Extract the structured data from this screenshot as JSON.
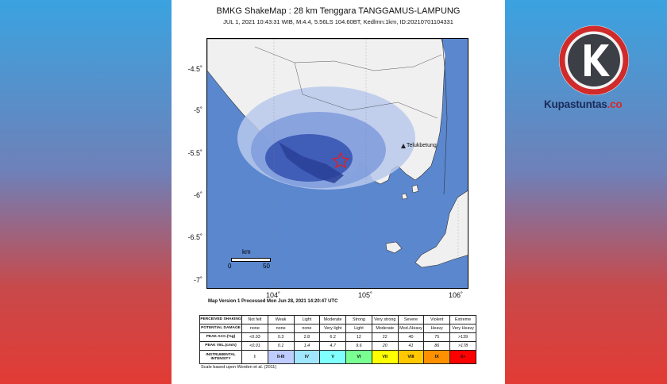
{
  "title": "BMKG ShakeMap : 28 km Tenggara TANGGAMUS-LAMPUNG",
  "subtitle": "JUL 1, 2021 10:43:31 WIB, M:4.4, 5.56LS 104.60BT, Kedlmn:1km, ID:20210701104331",
  "map": {
    "lat_ticks": [
      "-4.5˚",
      "-5˚",
      "-5.5˚",
      "-6˚",
      "-6.5˚",
      "-7˚"
    ],
    "lon_ticks": [
      "104˚",
      "105˚",
      "106˚"
    ],
    "place_label": "Telukbetung",
    "scale_bar": {
      "unit": "km",
      "start": "0",
      "end": "50"
    },
    "epicenter": {
      "lat": -5.56,
      "lon": 104.6
    }
  },
  "processed_note": "Map Version 1 Processed Mon Jun 28, 2021 14:20:47 UTC",
  "legend": {
    "rows": [
      {
        "label": "PERCEIVED SHAKING",
        "cells": [
          "Not felt",
          "Weak",
          "Light",
          "Moderate",
          "Strong",
          "Very strong",
          "Severe",
          "Violent",
          "Extreme"
        ]
      },
      {
        "label": "POTENTIAL DAMAGE",
        "cells": [
          "none",
          "none",
          "none",
          "Very light",
          "Light",
          "Moderate",
          "Mod./Heavy",
          "Heavy",
          "Very Heavy"
        ]
      },
      {
        "label": "PEAK ACC.(%g)",
        "cells": [
          "<0.03",
          "0.3",
          "2.8",
          "6.2",
          "12",
          "22",
          "40",
          "75",
          ">139"
        ]
      },
      {
        "label": "PEAK VEL.(cm/s)",
        "cells": [
          "<0.01",
          "0.1",
          "1.4",
          "4.7",
          "9.6",
          "20",
          "41",
          "86",
          ">178"
        ]
      },
      {
        "label": "INSTRUMENTAL INTENSITY",
        "cells": [
          "I",
          "II-III",
          "IV",
          "V",
          "VI",
          "VII",
          "VIII",
          "IX",
          "X+"
        ]
      }
    ],
    "intensity_colors": [
      "#ffffff",
      "#bfccff",
      "#a0e6ff",
      "#80ffff",
      "#7aff93",
      "#ffff00",
      "#ffc800",
      "#ff9100",
      "#ff0000"
    ],
    "scale_note": "Scale based upon Worden et al. (2011)"
  },
  "brand": {
    "name": "Kupastuntas",
    "suffix": ".co",
    "logo_letter": "K"
  }
}
